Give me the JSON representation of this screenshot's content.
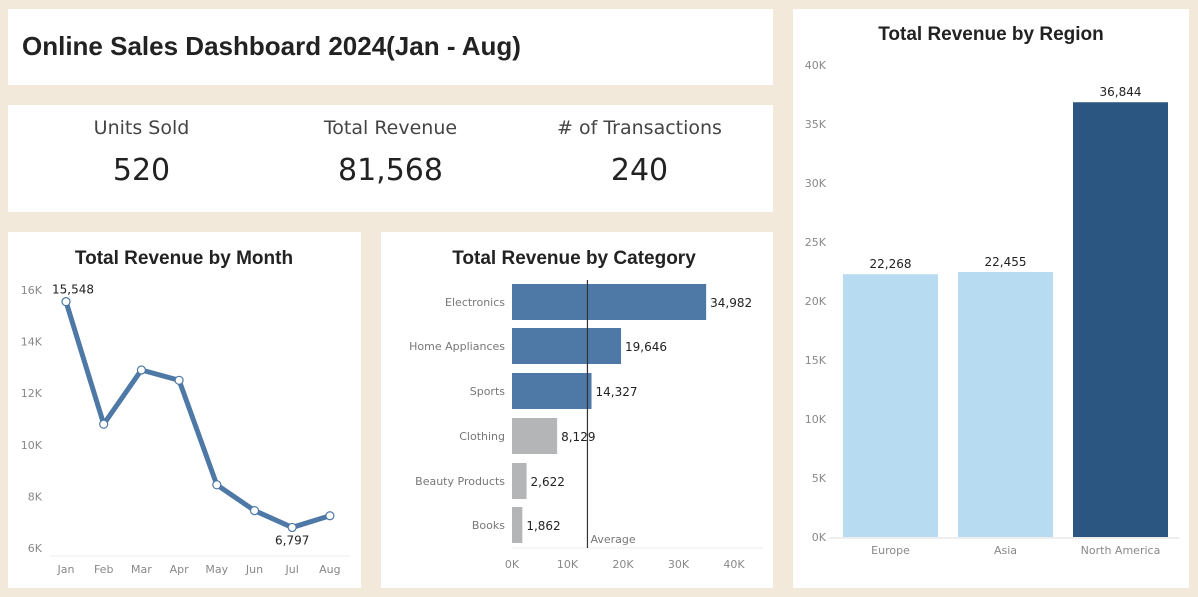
{
  "dashboard_title": "Online Sales Dashboard 2024(Jan - Aug)",
  "kpis": [
    {
      "label": "Units Sold",
      "value": "520"
    },
    {
      "label": "Total Revenue",
      "value": "81,568"
    },
    {
      "label": "# of Transactions",
      "value": "240"
    }
  ],
  "colors": {
    "background": "#f3e9da",
    "blue": "#4e78a6",
    "gray": "#b3b5b6",
    "light_blue": "#b7dbf0",
    "dark_blue": "#2c5682"
  },
  "chart_data": [
    {
      "type": "line",
      "title": "Total Revenue by Month",
      "categories": [
        "Jan",
        "Feb",
        "Mar",
        "Apr",
        "May",
        "Jun",
        "Jul",
        "Aug"
      ],
      "values": [
        15548,
        10800,
        12900,
        12500,
        8450,
        7450,
        6797,
        7250
      ],
      "labeled": {
        "Jan": "15,548",
        "Jul": "6,797"
      },
      "ylim": [
        6000,
        16000
      ],
      "yticks": [
        6000,
        8000,
        10000,
        12000,
        14000,
        16000
      ],
      "ytick_labels": [
        "6K",
        "8K",
        "10K",
        "12K",
        "14K",
        "16K"
      ]
    },
    {
      "type": "bar",
      "orientation": "horizontal",
      "title": "Total Revenue by Category",
      "categories": [
        "Electronics",
        "Home Appliances",
        "Sports",
        "Clothing",
        "Beauty Products",
        "Books"
      ],
      "values": [
        34982,
        19646,
        14327,
        8129,
        2622,
        1862
      ],
      "value_labels": [
        "34,982",
        "19,646",
        "14,327",
        "8,129",
        "2,622",
        "1,862"
      ],
      "above_average": [
        true,
        true,
        true,
        false,
        false,
        false
      ],
      "reference_line": {
        "label": "Average",
        "value": 13595
      },
      "xlim": [
        0,
        45000
      ],
      "xticks": [
        0,
        10000,
        20000,
        30000,
        40000
      ],
      "xtick_labels": [
        "0K",
        "10K",
        "20K",
        "30K",
        "40K"
      ]
    },
    {
      "type": "bar",
      "title": "Total Revenue by Region",
      "categories": [
        "Europe",
        "Asia",
        "North America"
      ],
      "values": [
        22268,
        22455,
        36844
      ],
      "value_labels": [
        "22,268",
        "22,455",
        "36,844"
      ],
      "ylim": [
        0,
        40000
      ],
      "yticks": [
        0,
        5000,
        10000,
        15000,
        20000,
        25000,
        30000,
        35000,
        40000
      ],
      "ytick_labels": [
        "0K",
        "5K",
        "10K",
        "15K",
        "20K",
        "25K",
        "30K",
        "35K",
        "40K"
      ]
    }
  ]
}
